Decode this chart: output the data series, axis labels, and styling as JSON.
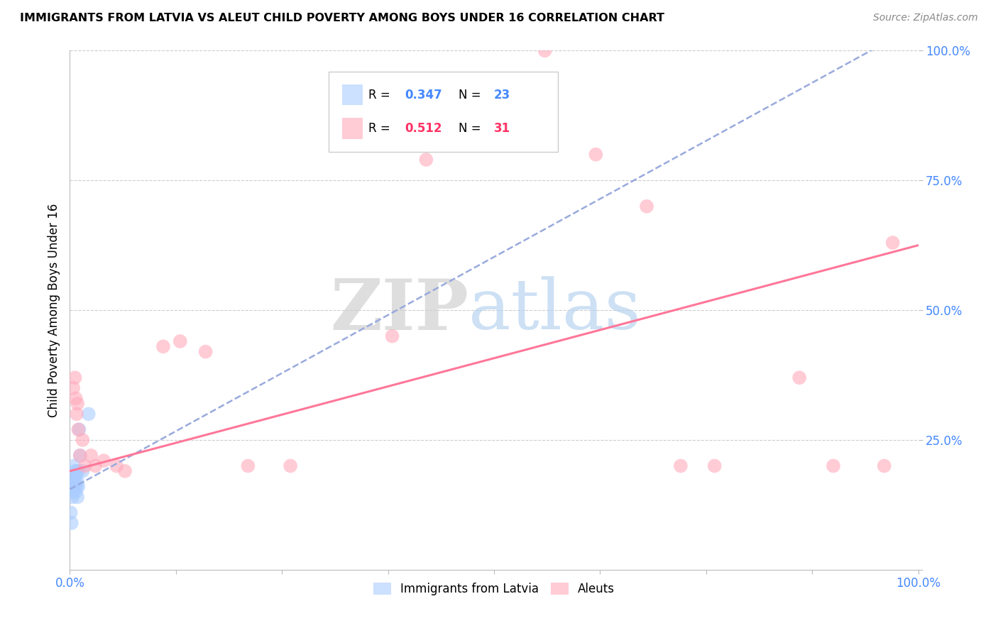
{
  "title": "IMMIGRANTS FROM LATVIA VS ALEUT CHILD POVERTY AMONG BOYS UNDER 16 CORRELATION CHART",
  "source": "Source: ZipAtlas.com",
  "ylabel": "Child Poverty Among Boys Under 16",
  "xlim": [
    0,
    1.0
  ],
  "ylim": [
    0,
    1.0
  ],
  "color_blue": "#aaccff",
  "color_pink": "#ffaabb",
  "color_blue_line": "#99aadd",
  "color_pink_line": "#ff7799",
  "color_blue_text": "#4488ff",
  "color_pink_text": "#ff3366",
  "color_grid": "#cccccc",
  "watermark_zip": "ZIP",
  "watermark_atlas": "atlas",
  "blue_points_x": [
    0.001,
    0.002,
    0.003,
    0.003,
    0.004,
    0.004,
    0.005,
    0.005,
    0.005,
    0.006,
    0.006,
    0.007,
    0.007,
    0.008,
    0.008,
    0.009,
    0.009,
    0.01,
    0.01,
    0.011,
    0.012,
    0.015,
    0.022
  ],
  "blue_points_y": [
    0.11,
    0.09,
    0.14,
    0.16,
    0.17,
    0.15,
    0.16,
    0.18,
    0.2,
    0.17,
    0.19,
    0.15,
    0.18,
    0.16,
    0.19,
    0.14,
    0.17,
    0.16,
    0.19,
    0.27,
    0.22,
    0.19,
    0.3
  ],
  "pink_points_x": [
    0.004,
    0.006,
    0.007,
    0.008,
    0.009,
    0.01,
    0.012,
    0.015,
    0.018,
    0.025,
    0.03,
    0.04,
    0.055,
    0.065,
    0.11,
    0.13,
    0.16,
    0.21,
    0.26,
    0.38,
    0.42,
    0.5,
    0.56,
    0.62,
    0.68,
    0.72,
    0.76,
    0.86,
    0.9,
    0.96,
    0.97
  ],
  "pink_points_y": [
    0.35,
    0.37,
    0.33,
    0.3,
    0.32,
    0.27,
    0.22,
    0.25,
    0.2,
    0.22,
    0.2,
    0.21,
    0.2,
    0.19,
    0.43,
    0.44,
    0.42,
    0.2,
    0.2,
    0.45,
    0.79,
    0.82,
    1.0,
    0.8,
    0.7,
    0.2,
    0.2,
    0.37,
    0.2,
    0.2,
    0.63
  ],
  "blue_line_x": [
    0.0,
    1.0
  ],
  "blue_line_y": [
    0.155,
    1.05
  ],
  "pink_line_x": [
    0.0,
    1.0
  ],
  "pink_line_y": [
    0.19,
    0.625
  ]
}
